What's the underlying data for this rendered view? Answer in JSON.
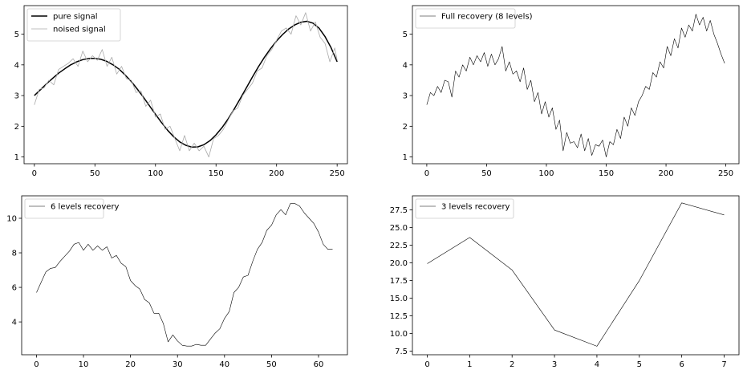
{
  "chart_data": [
    {
      "type": "line",
      "title": "",
      "xlabel": "",
      "ylabel": "",
      "xlim": [
        -8.5,
        258.5
      ],
      "ylim": [
        0.78,
        5.93
      ],
      "xticks": [
        0,
        50,
        100,
        150,
        200,
        250
      ],
      "yticks": [
        1,
        2,
        3,
        4,
        5
      ],
      "legend": "upper-left",
      "series": [
        {
          "name": "pure signal",
          "color": "#000000",
          "width": 1.5,
          "x": [
            0,
            5,
            10,
            15,
            20,
            25,
            30,
            35,
            40,
            45,
            50,
            55,
            60,
            65,
            70,
            75,
            80,
            85,
            90,
            95,
            100,
            105,
            110,
            115,
            120,
            125,
            130,
            135,
            140,
            145,
            150,
            155,
            160,
            165,
            170,
            175,
            180,
            185,
            190,
            195,
            200,
            205,
            210,
            215,
            220,
            225,
            230,
            235,
            240,
            245,
            250
          ],
          "values": [
            3.0,
            3.19,
            3.38,
            3.56,
            3.73,
            3.87,
            4.0,
            4.1,
            4.17,
            4.21,
            4.21,
            4.18,
            4.11,
            4.0,
            3.86,
            3.67,
            3.46,
            3.21,
            2.95,
            2.67,
            2.39,
            2.12,
            1.87,
            1.66,
            1.49,
            1.38,
            1.32,
            1.33,
            1.4,
            1.53,
            1.72,
            1.96,
            2.24,
            2.56,
            2.9,
            3.25,
            3.6,
            3.94,
            4.25,
            4.53,
            4.78,
            4.99,
            5.17,
            5.3,
            5.39,
            5.42,
            5.36,
            5.2,
            4.92,
            4.56,
            4.1
          ]
        },
        {
          "name": "noised signal",
          "color": "#aaaaaa",
          "width": 0.8,
          "x": [
            0,
            4,
            8,
            12,
            16,
            20,
            24,
            28,
            32,
            36,
            40,
            44,
            48,
            52,
            56,
            60,
            64,
            68,
            72,
            76,
            80,
            84,
            88,
            92,
            96,
            100,
            104,
            108,
            112,
            116,
            120,
            124,
            128,
            132,
            136,
            140,
            144,
            148,
            152,
            156,
            160,
            164,
            168,
            172,
            176,
            180,
            184,
            188,
            192,
            196,
            200,
            204,
            208,
            212,
            216,
            220,
            224,
            228,
            232,
            236,
            240,
            244,
            248,
            250
          ],
          "values": [
            2.7,
            3.2,
            3.25,
            3.5,
            3.35,
            3.85,
            3.95,
            4.05,
            4.2,
            3.95,
            4.45,
            4.1,
            4.3,
            4.15,
            4.5,
            3.95,
            4.25,
            3.7,
            3.95,
            3.55,
            3.5,
            3.1,
            3.15,
            2.65,
            2.85,
            2.3,
            2.4,
            1.9,
            2.0,
            1.6,
            1.2,
            1.7,
            1.2,
            1.45,
            1.2,
            1.35,
            1.0,
            1.6,
            1.7,
            1.9,
            2.2,
            2.5,
            2.6,
            3.0,
            3.2,
            3.4,
            3.8,
            3.9,
            4.3,
            4.5,
            4.8,
            5.1,
            5.2,
            5.0,
            5.6,
            5.3,
            5.7,
            5.1,
            5.4,
            4.9,
            4.7,
            4.1,
            4.55,
            4.15
          ]
        }
      ]
    },
    {
      "type": "line",
      "title": "",
      "xlabel": "",
      "ylabel": "",
      "xlim": [
        -12,
        261
      ],
      "ylim": [
        0.78,
        5.93
      ],
      "xticks": [
        0,
        50,
        100,
        150,
        200,
        250
      ],
      "yticks": [
        1,
        2,
        3,
        4,
        5
      ],
      "legend": "upper-left",
      "series": [
        {
          "name": "Full recovery (8 levels)",
          "color": "#000000",
          "width": 0.6,
          "x": [
            0,
            3,
            6,
            9,
            12,
            15,
            18,
            21,
            24,
            27,
            30,
            33,
            36,
            39,
            42,
            45,
            48,
            51,
            54,
            57,
            60,
            63,
            66,
            69,
            72,
            75,
            78,
            81,
            84,
            87,
            90,
            93,
            96,
            99,
            102,
            105,
            108,
            111,
            114,
            117,
            120,
            123,
            126,
            129,
            132,
            135,
            138,
            141,
            144,
            147,
            150,
            153,
            156,
            159,
            162,
            165,
            168,
            171,
            174,
            177,
            180,
            183,
            186,
            189,
            192,
            195,
            198,
            201,
            204,
            207,
            210,
            213,
            216,
            219,
            222,
            225,
            228,
            231,
            234,
            237,
            240,
            243,
            246,
            249
          ],
          "values": [
            2.7,
            3.1,
            3.0,
            3.3,
            3.1,
            3.5,
            3.45,
            2.95,
            3.8,
            3.6,
            4.0,
            3.8,
            4.25,
            4.0,
            4.3,
            4.1,
            4.4,
            3.95,
            4.35,
            4.0,
            4.2,
            4.6,
            3.8,
            4.1,
            3.7,
            3.8,
            3.45,
            3.9,
            3.2,
            3.5,
            2.8,
            3.1,
            2.4,
            2.8,
            2.3,
            2.6,
            1.9,
            2.2,
            1.2,
            1.8,
            1.45,
            1.5,
            1.3,
            1.75,
            1.2,
            1.6,
            1.05,
            1.4,
            1.35,
            1.55,
            1.0,
            1.5,
            1.4,
            1.9,
            1.6,
            2.3,
            2.0,
            2.6,
            2.35,
            2.8,
            3.0,
            3.3,
            3.2,
            3.75,
            3.6,
            4.1,
            3.9,
            4.6,
            4.3,
            4.85,
            4.55,
            5.2,
            4.9,
            5.3,
            5.1,
            5.65,
            5.3,
            5.55,
            5.1,
            5.45,
            5.0,
            4.7,
            4.35,
            4.05
          ]
        }
      ]
    },
    {
      "type": "line",
      "title": "",
      "xlabel": "",
      "ylabel": "",
      "xlim": [
        -3.15,
        66.15
      ],
      "ylim": [
        2.1,
        11.3
      ],
      "xticks": [
        0,
        10,
        20,
        30,
        40,
        50,
        60
      ],
      "yticks": [
        4,
        6,
        8,
        10
      ],
      "legend": "upper-left",
      "series": [
        {
          "name": "6 levels recovery",
          "color": "#000000",
          "width": 0.6,
          "x": [
            0,
            1,
            2,
            3,
            4,
            5,
            6,
            7,
            8,
            9,
            10,
            11,
            12,
            13,
            14,
            15,
            16,
            17,
            18,
            19,
            20,
            21,
            22,
            23,
            24,
            25,
            26,
            27,
            28,
            29,
            30,
            31,
            32,
            33,
            34,
            35,
            36,
            37,
            38,
            39,
            40,
            41,
            42,
            43,
            44,
            45,
            46,
            47,
            48,
            49,
            50,
            51,
            52,
            53,
            54,
            55,
            56,
            57,
            58,
            59,
            60,
            61,
            62,
            63
          ],
          "values": [
            5.7,
            6.3,
            6.9,
            7.1,
            7.15,
            7.5,
            7.8,
            8.1,
            8.5,
            8.6,
            8.15,
            8.5,
            8.15,
            8.4,
            8.15,
            8.35,
            7.7,
            7.85,
            7.4,
            7.2,
            6.4,
            6.1,
            5.9,
            5.3,
            5.1,
            4.5,
            4.5,
            3.9,
            2.85,
            3.25,
            2.9,
            2.65,
            2.6,
            2.6,
            2.7,
            2.65,
            2.65,
            3.0,
            3.35,
            3.6,
            4.2,
            4.6,
            5.7,
            6.0,
            6.6,
            6.7,
            7.5,
            8.2,
            8.6,
            9.3,
            9.6,
            10.2,
            10.5,
            10.2,
            10.85,
            10.85,
            10.7,
            10.3,
            10.0,
            9.7,
            9.2,
            8.5,
            8.2,
            8.2
          ]
        }
      ]
    },
    {
      "type": "line",
      "title": "",
      "xlabel": "",
      "ylabel": "",
      "xlim": [
        -0.35,
        7.35
      ],
      "ylim": [
        7.0,
        29.5
      ],
      "xticks": [
        0,
        1,
        2,
        3,
        4,
        5,
        6,
        7
      ],
      "yticks": [
        7.5,
        10.0,
        12.5,
        15.0,
        17.5,
        20.0,
        22.5,
        25.0,
        27.5
      ],
      "yticklabels": [
        "7.5",
        "10.0",
        "12.5",
        "15.0",
        "17.5",
        "20.0",
        "22.5",
        "25.0",
        "27.5"
      ],
      "legend": "upper-left",
      "series": [
        {
          "name": "3 levels recovery",
          "color": "#000000",
          "width": 0.6,
          "x": [
            0,
            1,
            2,
            3,
            4,
            5,
            6,
            7
          ],
          "values": [
            19.9,
            23.6,
            19.0,
            10.5,
            8.2,
            17.5,
            28.5,
            26.8
          ]
        }
      ]
    }
  ]
}
